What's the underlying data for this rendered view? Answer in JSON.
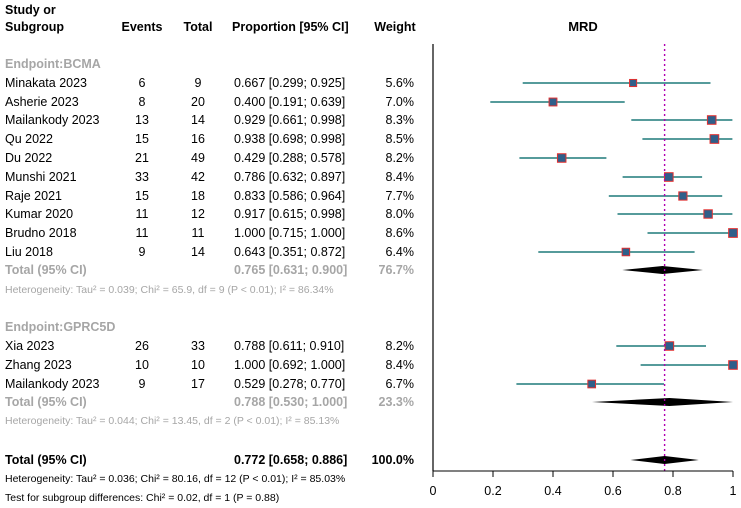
{
  "header": {
    "study_line1": "Study or",
    "study_line2": "Subgroup",
    "events": "Events",
    "total": "Total",
    "proportion": "Proportion [95% CI]",
    "weight": "Weight",
    "plot_title": "MRD"
  },
  "groups": [
    {
      "label": "Endpoint:BCMA",
      "studies": [
        {
          "study": "Minakata  2023",
          "events": "6",
          "total": "9",
          "ci_text": "0.667 [0.299; 0.925]",
          "weight": "5.6%",
          "est": 0.667,
          "lo": 0.299,
          "hi": 0.925
        },
        {
          "study": "Asherie 2023",
          "events": "8",
          "total": "20",
          "ci_text": "0.400 [0.191; 0.639]",
          "weight": "7.0%",
          "est": 0.4,
          "lo": 0.191,
          "hi": 0.639
        },
        {
          "study": "Mailankody 2023",
          "events": "13",
          "total": "14",
          "ci_text": "0.929 [0.661; 0.998]",
          "weight": "8.3%",
          "est": 0.929,
          "lo": 0.661,
          "hi": 0.998
        },
        {
          "study": "Qu 2022",
          "events": "15",
          "total": "16",
          "ci_text": "0.938 [0.698; 0.998]",
          "weight": "8.5%",
          "est": 0.938,
          "lo": 0.698,
          "hi": 0.998
        },
        {
          "study": "Du 2022",
          "events": "21",
          "total": "49",
          "ci_text": "0.429 [0.288; 0.578]",
          "weight": "8.2%",
          "est": 0.429,
          "lo": 0.288,
          "hi": 0.578
        },
        {
          "study": "Munshi 2021",
          "events": "33",
          "total": "42",
          "ci_text": "0.786 [0.632; 0.897]",
          "weight": "8.4%",
          "est": 0.786,
          "lo": 0.632,
          "hi": 0.897
        },
        {
          "study": "Raje 2021",
          "events": "15",
          "total": "18",
          "ci_text": "0.833 [0.586; 0.964]",
          "weight": "7.7%",
          "est": 0.833,
          "lo": 0.586,
          "hi": 0.964
        },
        {
          "study": "Kumar 2020",
          "events": "11",
          "total": "12",
          "ci_text": "0.917 [0.615; 0.998]",
          "weight": "8.0%",
          "est": 0.917,
          "lo": 0.615,
          "hi": 0.998
        },
        {
          "study": "Brudno 2018",
          "events": "11",
          "total": "11",
          "ci_text": "1.000 [0.715; 1.000]",
          "weight": "8.6%",
          "est": 1.0,
          "lo": 0.715,
          "hi": 1.0
        },
        {
          "study": "Liu 2018",
          "events": "9",
          "total": "14",
          "ci_text": "0.643 [0.351; 0.872]",
          "weight": "6.4%",
          "est": 0.643,
          "lo": 0.351,
          "hi": 0.872
        }
      ],
      "total": {
        "label": "Total (95% CI)",
        "ci_text": "0.765 [0.631; 0.900]",
        "weight": "76.7%",
        "est": 0.765,
        "lo": 0.631,
        "hi": 0.9
      },
      "heterogeneity": "Heterogeneity: Tau² = 0.039; Chi² = 65.9, df = 9 (P < 0.01); I² = 86.34%"
    },
    {
      "label": "Endpoint:GPRC5D",
      "studies": [
        {
          "study": "Xia 2023",
          "events": "26",
          "total": "33",
          "ci_text": "0.788 [0.611; 0.910]",
          "weight": "8.2%",
          "est": 0.788,
          "lo": 0.611,
          "hi": 0.91
        },
        {
          "study": "Zhang 2023",
          "events": "10",
          "total": "10",
          "ci_text": "1.000 [0.692; 1.000]",
          "weight": "8.4%",
          "est": 1.0,
          "lo": 0.692,
          "hi": 1.0
        },
        {
          "study": "Mailankody 2023",
          "events": "9",
          "total": "17",
          "ci_text": "0.529 [0.278; 0.770]",
          "weight": "6.7%",
          "est": 0.529,
          "lo": 0.278,
          "hi": 0.77
        }
      ],
      "total": {
        "label": "Total (95% CI)",
        "ci_text": "0.788 [0.530; 1.000]",
        "weight": "23.3%",
        "est": 0.788,
        "lo": 0.53,
        "hi": 1.0
      },
      "heterogeneity": "Heterogeneity: Tau² = 0.044; Chi² = 13.45, df = 2 (P < 0.01); I² = 85.13%"
    }
  ],
  "overall": {
    "label": "Total (95% CI)",
    "ci_text": "0.772 [0.658; 0.886]",
    "weight": "100.0%",
    "est": 0.772,
    "lo": 0.658,
    "hi": 0.886,
    "heterogeneity": "Heterogeneity: Tau² = 0.036; Chi² = 80.16, df = 12 (P < 0.01); I² = 85.03%",
    "subgroup_test": "Test for subgroup differences: Chi² = 0.02, df = 1 (P = 0.88)"
  },
  "chart_data": {
    "type": "forest",
    "title": "MRD",
    "xlim": [
      0,
      1
    ],
    "x_ticks": [
      0,
      0.2,
      0.4,
      0.6,
      0.8,
      1
    ],
    "x_tick_labels": [
      "0",
      "0.2",
      "0.4",
      "0.6",
      "0.8",
      "1"
    ],
    "reference_line": 0.772,
    "colors": {
      "ci_line": "#1f7a7a",
      "square_fill": "#2f5f8a",
      "square_edge": "#e03030",
      "reference": "#b000b0",
      "diamond": "#000000",
      "grey_text": "#a6a6a6"
    }
  }
}
